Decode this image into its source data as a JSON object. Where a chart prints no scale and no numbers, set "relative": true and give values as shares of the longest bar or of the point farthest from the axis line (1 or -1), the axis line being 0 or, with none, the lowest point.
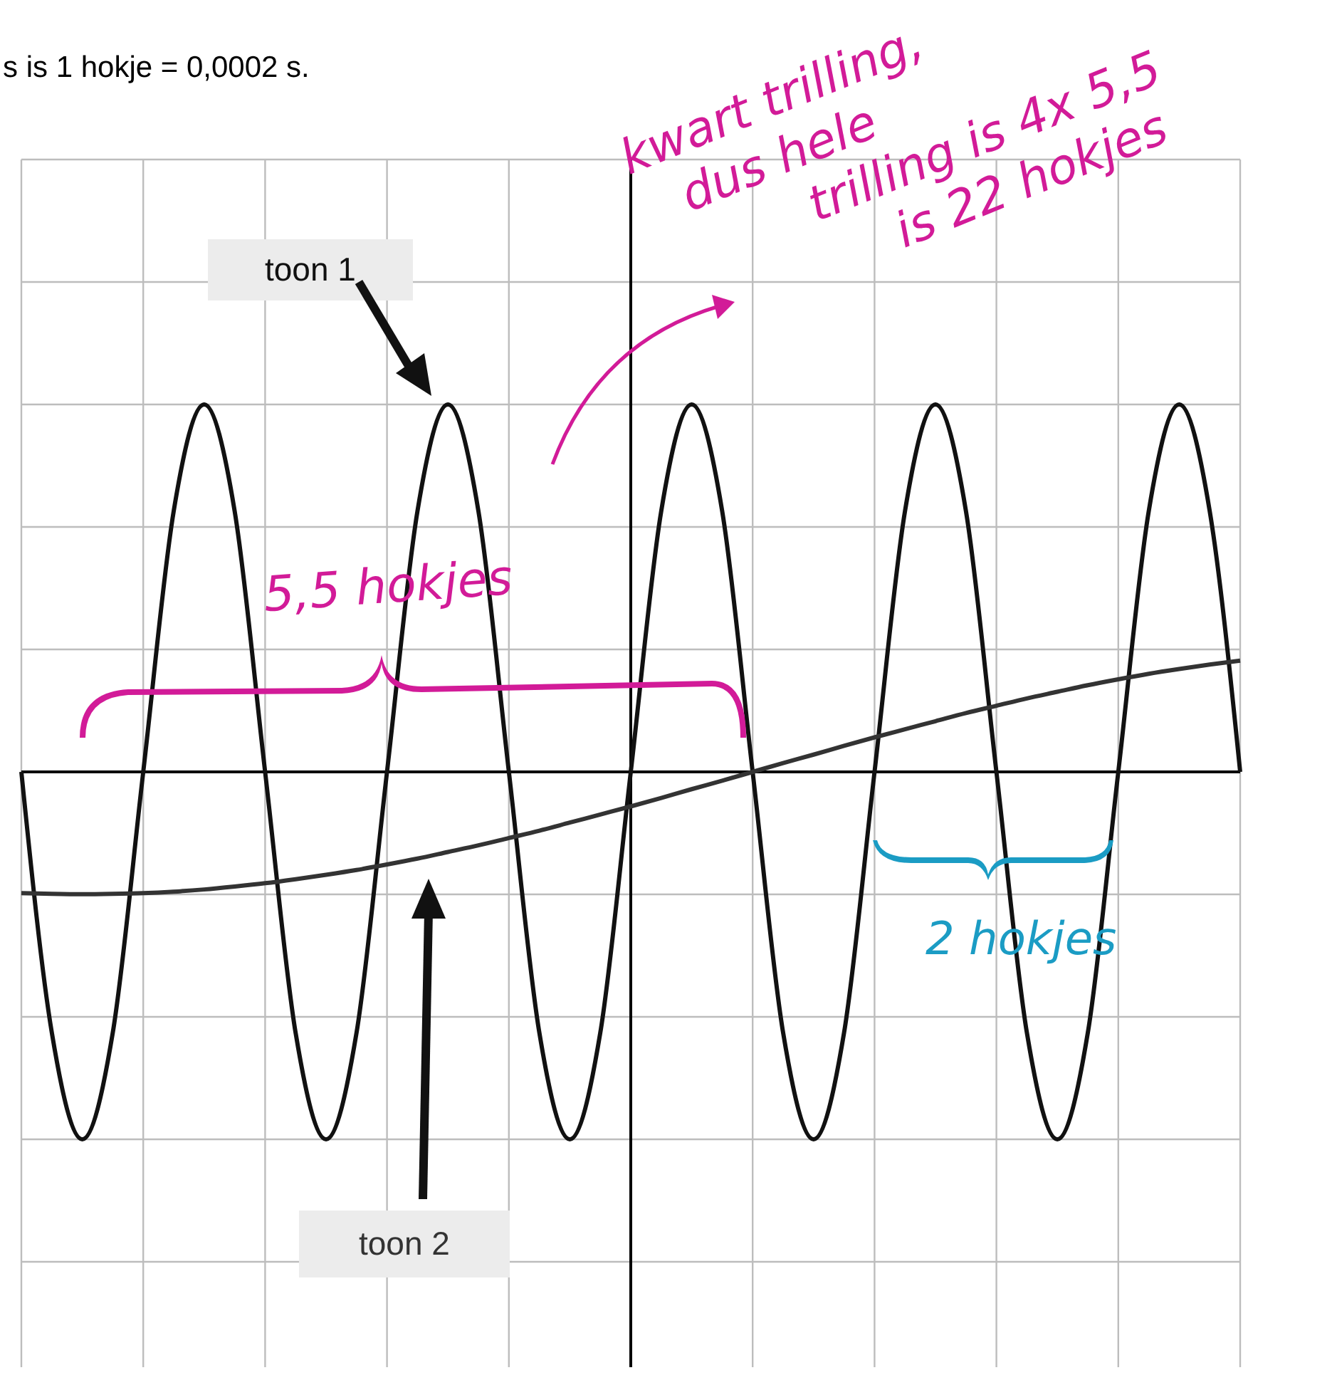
{
  "chart_data": {
    "type": "line",
    "relative": true,
    "grid": true,
    "marker": "none",
    "line_style": "solid",
    "categories": [
      null,
      null,
      null,
      null,
      null,
      null,
      null,
      null,
      null,
      null,
      null,
      null,
      null,
      null,
      null,
      null,
      null,
      null,
      null,
      null,
      null,
      null,
      null,
      null,
      null,
      null,
      null,
      null,
      null,
      null,
      null,
      null,
      null,
      null,
      null,
      null,
      null,
      null,
      null,
      null,
      null
    ],
    "series": [
      {
        "name": "toon 1",
        "color": "#111111",
        "values": [
          0,
          -0.71,
          -1,
          -0.71,
          0,
          0.71,
          1,
          0.71,
          0,
          -0.71,
          -1,
          -0.71,
          0,
          0.71,
          1,
          0.71,
          0,
          -0.71,
          -1,
          -0.71,
          0,
          0.71,
          1,
          0.71,
          0,
          -0.71,
          -1,
          -0.71,
          0,
          0.71,
          1,
          0.71,
          0,
          -0.71,
          -1,
          -0.71,
          0,
          0.71,
          1,
          0.71,
          0
        ]
      },
      {
        "name": "toon 2",
        "color": "#333333",
        "values": [
          -0.33,
          -0.332,
          -0.333,
          -0.332,
          -0.33,
          -0.326,
          -0.32,
          -0.312,
          -0.303,
          -0.292,
          -0.28,
          -0.267,
          -0.252,
          -0.236,
          -0.218,
          -0.2,
          -0.18,
          -0.16,
          -0.138,
          -0.116,
          -0.094,
          -0.071,
          -0.047,
          -0.024,
          0,
          0.024,
          0.047,
          0.071,
          0.094,
          0.116,
          0.138,
          0.16,
          0.18,
          0.2,
          0.218,
          0.236,
          0.252,
          0.267,
          0.28,
          0.292,
          0.303
        ]
      }
    ],
    "annotations": [
      "s is 1 hokje = 0,0002 s.",
      "kwart trilling, dus hele trilling is 4x 5,5 is 22 hokjes",
      "5,5 hokjes",
      "2 hokjes"
    ]
  }
}
